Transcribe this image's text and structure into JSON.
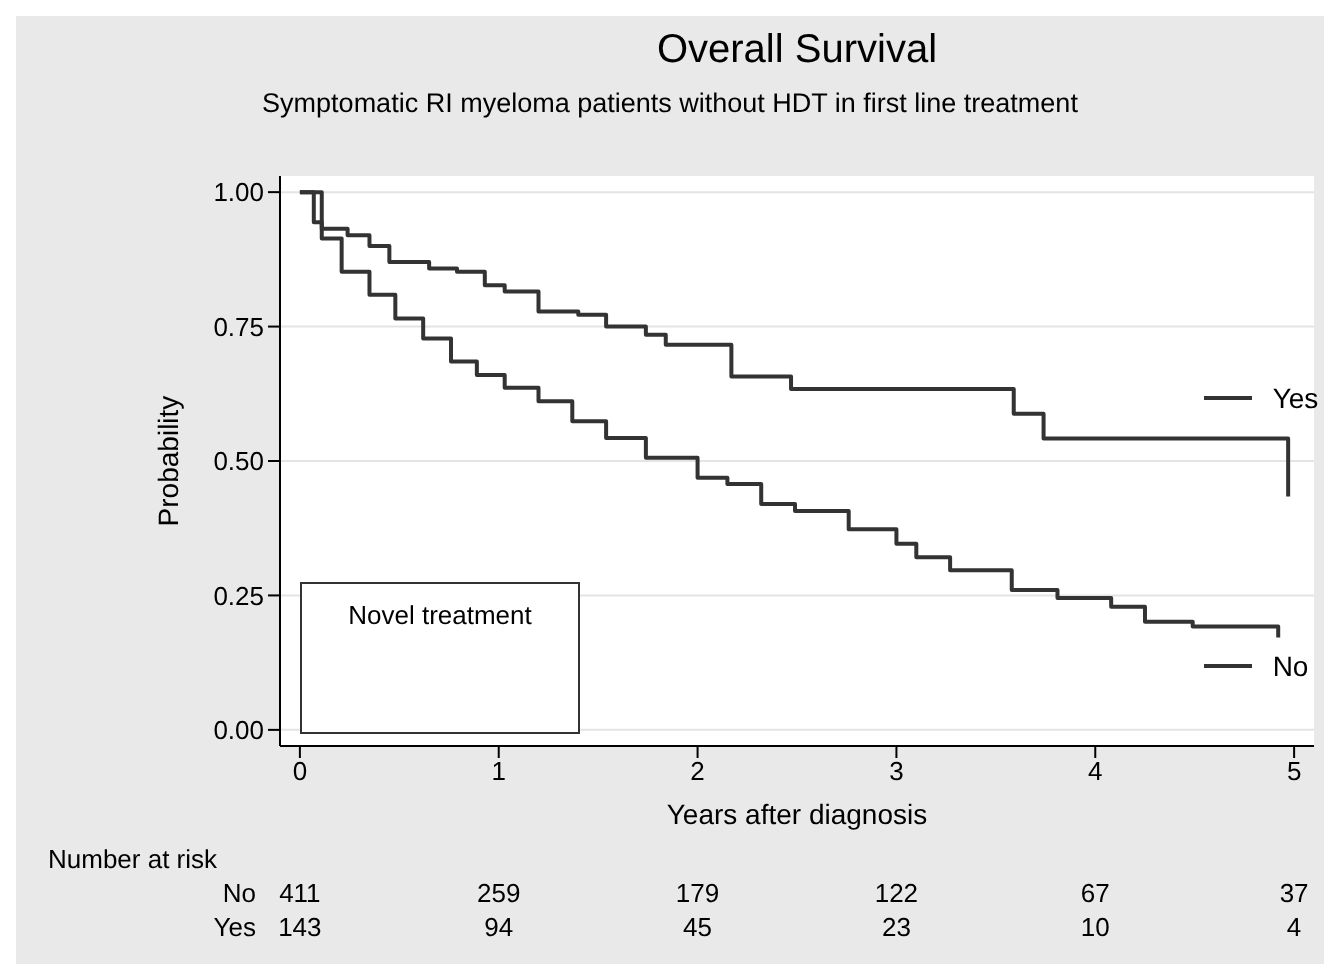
{
  "chart_data": {
    "type": "step",
    "title": "Overall Survival",
    "subtitle": "Symptomatic RI myeloma patients without HDT in first line treatment",
    "xlabel": "Years after diagnosis",
    "ylabel": "Probability",
    "legend_title": "Novel treatment",
    "series": [
      {
        "name": "No",
        "color": "#333333",
        "x": [
          0,
          0.11,
          0.21,
          0.35,
          0.48,
          0.62,
          0.76,
          0.89,
          1.03,
          1.2,
          1.37,
          1.54,
          1.74,
          2.0,
          2.15,
          2.32,
          2.49,
          2.76,
          3.0,
          3.1,
          3.27,
          3.58,
          3.81,
          4.08,
          4.25,
          4.49,
          4.92
        ],
        "values": [
          1.0,
          0.914,
          0.852,
          0.809,
          0.765,
          0.728,
          0.685,
          0.66,
          0.636,
          0.611,
          0.574,
          0.543,
          0.506,
          0.469,
          0.457,
          0.42,
          0.407,
          0.373,
          0.346,
          0.321,
          0.297,
          0.26,
          0.245,
          0.229,
          0.201,
          0.192,
          0.172
        ]
      },
      {
        "name": "Yes",
        "color": "#333333",
        "x": [
          0,
          0.07,
          0.11,
          0.24,
          0.35,
          0.45,
          0.65,
          0.79,
          0.93,
          1.03,
          1.2,
          1.4,
          1.54,
          1.74,
          1.84,
          2.17,
          2.47,
          3.59,
          3.74,
          4.97
        ],
        "values": [
          1.0,
          0.944,
          0.932,
          0.92,
          0.9,
          0.87,
          0.858,
          0.852,
          0.827,
          0.815,
          0.778,
          0.772,
          0.75,
          0.735,
          0.716,
          0.657,
          0.634,
          0.588,
          0.542,
          0.434
        ]
      }
    ],
    "xlim": [
      -0.1,
      5.1
    ],
    "xticks": [
      0,
      1,
      2,
      3,
      4,
      5
    ],
    "ylim": [
      -0.03,
      1.03
    ],
    "yticks": [
      {
        "value": 0,
        "label": "0.00"
      },
      {
        "value": 0.25,
        "label": "0.25"
      },
      {
        "value": 0.5,
        "label": "0.50"
      },
      {
        "value": 0.75,
        "label": "0.75"
      },
      {
        "value": 1,
        "label": "1.00"
      }
    ],
    "grid": "y",
    "legend": "right",
    "line_style": "solid",
    "annotations": [
      "Number at risk",
      "No",
      "411",
      "259",
      "179",
      "122",
      "67",
      "37",
      "Yes",
      "143",
      "94",
      "45",
      "23",
      "10",
      "4"
    ]
  }
}
